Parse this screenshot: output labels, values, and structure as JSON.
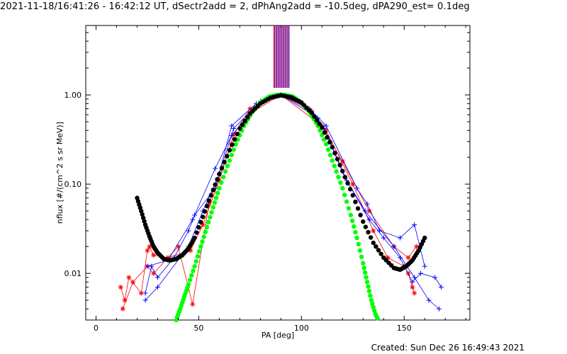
{
  "header": {
    "title": "2021-11-18/16:41:26 - 16:42:12 UT, dSectr2add = 2, dPhAng2add = -10.5deg, dPA290_est=  0.1deg"
  },
  "footer": {
    "created": "Created: Sun Dec 26 16:49:43 2021"
  },
  "colors": {
    "red": "#ff0000",
    "blue": "#0000ff",
    "green": "#00ff00",
    "black": "#000000"
  },
  "chart_data": {
    "type": "line",
    "title": "2021-11-18/16:41:26 - 16:42:12 UT, dSectr2add = 2, dPhAng2add = -10.5deg, dPA290_est=  0.1deg",
    "xlabel": "PA [deg]",
    "ylabel": "nflux [#/(cm^2 s sr MeV)]",
    "xlim": [
      -5,
      182
    ],
    "ylim": [
      0.003,
      6.0
    ],
    "yscale": "log",
    "xticks": [
      0,
      50,
      100,
      150
    ],
    "xtick_labels": [
      "0",
      "50",
      "100",
      "150"
    ],
    "yticks": [
      0.01,
      0.1,
      1.0
    ],
    "ytick_labels": [
      "0.01",
      "0.10",
      "1.00"
    ],
    "grid": false,
    "vertical_lines_x": [
      86.5,
      87,
      87.5,
      88,
      88.5,
      89,
      89.5,
      90,
      90.5,
      91,
      91.5,
      92,
      92.5,
      93,
      93.5,
      94
    ],
    "vertical_lines_ymin": 1.2,
    "series": [
      {
        "color": "red",
        "marker": "star",
        "x": [
          12,
          14,
          16,
          22,
          25,
          26,
          28,
          35,
          46,
          52,
          60,
          67,
          75,
          90,
          105,
          112,
          125,
          135,
          142,
          150,
          152,
          154,
          155
        ],
        "y": [
          0.007,
          0.005,
          0.009,
          0.006,
          0.018,
          0.02,
          0.016,
          0.015,
          0.018,
          0.035,
          0.11,
          0.36,
          0.7,
          1.0,
          0.65,
          0.4,
          0.1,
          0.03,
          0.015,
          0.012,
          0.01,
          0.007,
          0.006
        ]
      },
      {
        "color": "red",
        "marker": "star",
        "x": [
          13,
          18,
          25,
          28,
          40,
          47,
          55,
          66,
          75,
          90,
          110,
          120,
          133,
          145,
          152,
          156
        ],
        "y": [
          0.004,
          0.008,
          0.012,
          0.01,
          0.02,
          0.0045,
          0.06,
          0.28,
          0.62,
          1.0,
          0.45,
          0.18,
          0.05,
          0.02,
          0.015,
          0.02
        ]
      },
      {
        "color": "blue",
        "marker": "plus",
        "x": [
          24,
          27,
          30,
          38,
          45,
          48,
          58,
          66,
          78,
          90,
          108,
          114,
          122,
          133,
          140,
          148,
          154,
          158,
          165,
          168
        ],
        "y": [
          0.006,
          0.012,
          0.009,
          0.015,
          0.03,
          0.045,
          0.09,
          0.45,
          0.8,
          1.0,
          0.55,
          0.3,
          0.11,
          0.04,
          0.025,
          0.015,
          0.008,
          0.01,
          0.009,
          0.007
        ]
      },
      {
        "color": "blue",
        "marker": "plus",
        "x": [
          24,
          30,
          45,
          52,
          60,
          67,
          80,
          90,
          100,
          111,
          121,
          131,
          145,
          155,
          162,
          167
        ],
        "y": [
          0.005,
          0.007,
          0.02,
          0.05,
          0.13,
          0.42,
          0.85,
          1.0,
          0.8,
          0.42,
          0.12,
          0.05,
          0.02,
          0.009,
          0.005,
          0.004
        ]
      },
      {
        "color": "blue",
        "marker": "plus",
        "x": [
          25,
          35,
          47,
          58,
          66,
          78,
          90,
          104,
          112,
          127,
          132,
          138,
          148,
          155,
          160
        ],
        "y": [
          0.012,
          0.014,
          0.04,
          0.15,
          0.35,
          0.75,
          1.0,
          0.7,
          0.45,
          0.09,
          0.06,
          0.03,
          0.025,
          0.035,
          0.012
        ]
      }
    ],
    "fit_black": {
      "color": "black",
      "marker": "filled-circle",
      "x": [
        20,
        22,
        24,
        26,
        28,
        30,
        33,
        36,
        39,
        42,
        45,
        48,
        52,
        56,
        60,
        65,
        70,
        75,
        80,
        85,
        90,
        95,
        100,
        105,
        110,
        115,
        120,
        125,
        130,
        135,
        140,
        145,
        148,
        151,
        154,
        157,
        160
      ],
      "y": [
        0.07,
        0.05,
        0.035,
        0.026,
        0.02,
        0.017,
        0.0145,
        0.014,
        0.0145,
        0.016,
        0.019,
        0.025,
        0.043,
        0.075,
        0.13,
        0.24,
        0.42,
        0.62,
        0.8,
        0.93,
        0.99,
        0.94,
        0.82,
        0.63,
        0.43,
        0.26,
        0.14,
        0.075,
        0.038,
        0.022,
        0.015,
        0.0115,
        0.011,
        0.012,
        0.014,
        0.018,
        0.025
      ]
    },
    "fit_green": {
      "color": "green",
      "marker": "filled-circle",
      "x": [
        39,
        41,
        43,
        45,
        48,
        51,
        54,
        57,
        60,
        64,
        68,
        72,
        76,
        80,
        84,
        88,
        90,
        92,
        96,
        100,
        104,
        108,
        112,
        116,
        120,
        124,
        127,
        130,
        132,
        134,
        136,
        138
      ],
      "y": [
        0.003,
        0.004,
        0.0055,
        0.0075,
        0.012,
        0.02,
        0.033,
        0.055,
        0.09,
        0.16,
        0.28,
        0.45,
        0.64,
        0.82,
        0.95,
        1.0,
        1.0,
        1.0,
        0.95,
        0.82,
        0.64,
        0.45,
        0.28,
        0.16,
        0.09,
        0.045,
        0.025,
        0.013,
        0.008,
        0.005,
        0.0035,
        0.0028
      ]
    }
  }
}
